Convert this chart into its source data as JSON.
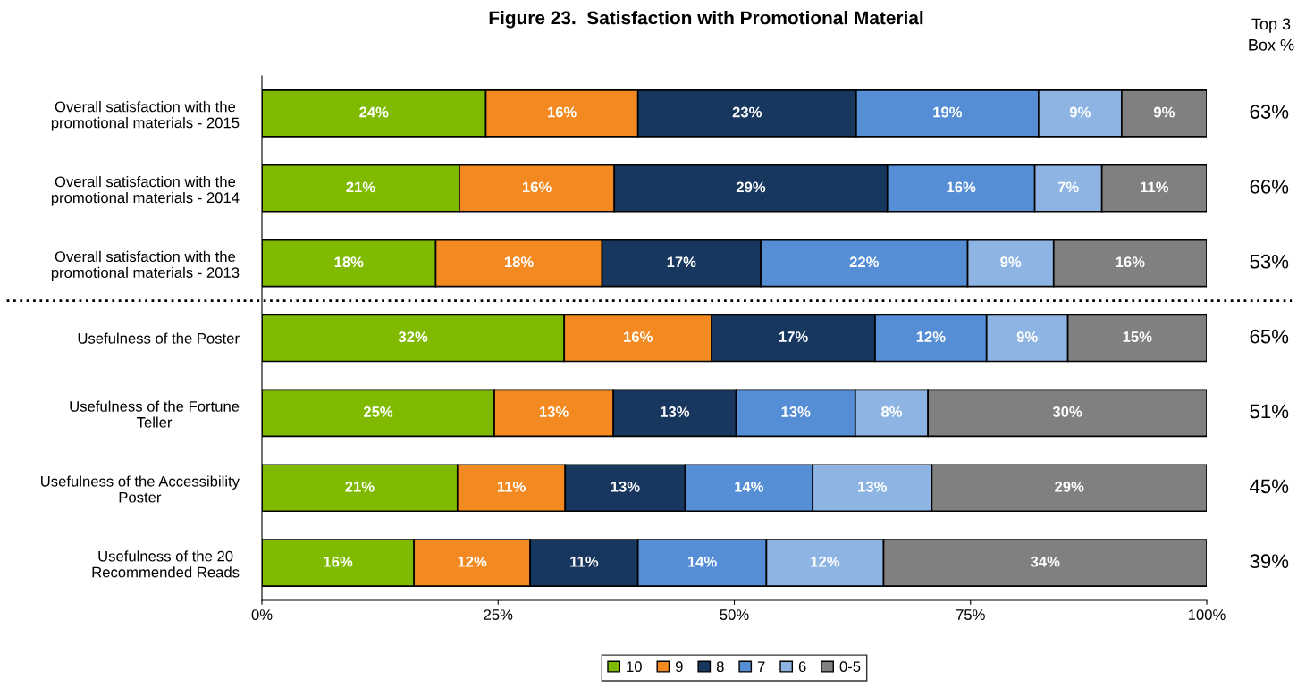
{
  "chart_data": {
    "type": "bar",
    "orientation": "horizontal",
    "stacked": true,
    "title": "Figure 23.  Satisfaction with Promotional Material",
    "categories": [
      "Overall satisfaction with the\npromotional materials - 2015",
      "Overall satisfaction with the\npromotional materials - 2014",
      "Overall satisfaction with the\npromotional materials - 2013",
      "Usefulness of the Poster",
      "Usefulness of the Fortune\nTeller",
      "Usefulness of the Accessibility\nPoster",
      "Usefulness of the 20\nRecommended Reads"
    ],
    "series": [
      {
        "name": "10",
        "color": "#7fba00",
        "values": [
          23.7,
          20.9,
          18.4,
          32.0,
          24.6,
          20.7,
          16.1
        ],
        "value_labels": [
          "24%",
          "21%",
          "18%",
          "32%",
          "25%",
          "21%",
          "16%"
        ]
      },
      {
        "name": "9",
        "color": "#f28a21",
        "values": [
          16.1,
          16.4,
          17.6,
          15.6,
          12.6,
          11.4,
          12.3
        ],
        "value_labels": [
          "16%",
          "16%",
          "18%",
          "16%",
          "13%",
          "11%",
          "12%"
        ]
      },
      {
        "name": "8",
        "color": "#17375e",
        "values": [
          23.1,
          28.9,
          16.8,
          17.3,
          13.0,
          12.7,
          11.4
        ],
        "value_labels": [
          "23%",
          "29%",
          "17%",
          "17%",
          "13%",
          "13%",
          "11%"
        ]
      },
      {
        "name": "7",
        "color": "#558ed5",
        "values": [
          19.3,
          15.6,
          21.9,
          11.8,
          12.6,
          13.5,
          13.6
        ],
        "value_labels": [
          "19%",
          "16%",
          "22%",
          "12%",
          "13%",
          "14%",
          "14%"
        ]
      },
      {
        "name": "6",
        "color": "#8eb4e3",
        "values": [
          8.8,
          7.1,
          9.1,
          8.6,
          7.7,
          12.6,
          12.4
        ],
        "value_labels": [
          "9%",
          "7%",
          "9%",
          "9%",
          "8%",
          "13%",
          "12%"
        ]
      },
      {
        "name": "0-5",
        "color": "#808080",
        "values": [
          9.0,
          11.1,
          16.2,
          14.7,
          29.5,
          29.1,
          34.2
        ],
        "value_labels": [
          "9%",
          "11%",
          "16%",
          "15%",
          "30%",
          "29%",
          "34%"
        ]
      }
    ],
    "xlim": [
      0,
      100
    ],
    "xticks": [
      {
        "value": 0,
        "label": "0%"
      },
      {
        "value": 25,
        "label": "25%"
      },
      {
        "value": 50,
        "label": "50%"
      },
      {
        "value": 75,
        "label": "75%"
      },
      {
        "value": 100,
        "label": "100%"
      }
    ],
    "annotations": [
      "Top 3\nBox %",
      "63%",
      "66%",
      "53%",
      "65%",
      "51%",
      "45%",
      "39%"
    ],
    "legend": "bottom",
    "grid": false
  }
}
